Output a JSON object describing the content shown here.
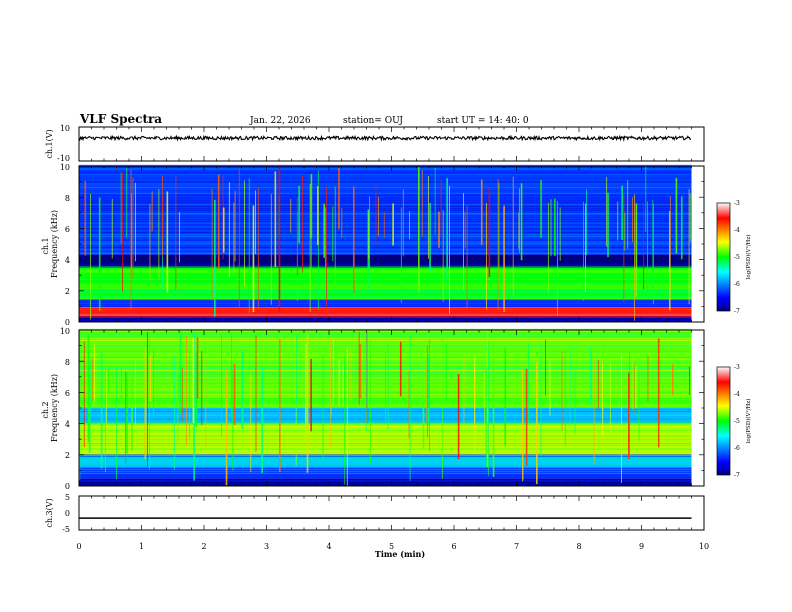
{
  "header": {
    "title": "VLF Spectra",
    "date": "Jan. 22, 2026",
    "station": "station= OUJ",
    "start": "start  UT =   14: 40: 0"
  },
  "chart_data": [
    {
      "type": "line",
      "name": "ch1-waveform",
      "ylabel": "ch.1(V)",
      "ylim": [
        -10,
        10
      ],
      "y_tick_labels": [
        "10",
        "-10"
      ],
      "x_range_min": [
        0,
        10
      ],
      "baseline_level_V": 3.5,
      "noise_amplitude_V": 1.0
    },
    {
      "type": "heatmap",
      "name": "ch1-spectrogram",
      "ylabel_line1": "ch.1",
      "ylabel_line2": "Frequency (kHz)",
      "ylim_kHz": [
        0,
        10
      ],
      "y_tick_labels": [
        "0",
        "2",
        "4",
        "6",
        "8",
        "10"
      ],
      "colorbar": {
        "label": "log(PSD)(V²/Hz)",
        "range": [
          -7,
          -3
        ],
        "tick_labels": [
          "-3",
          "-4",
          "-5",
          "-6",
          "-7"
        ]
      },
      "bands": [
        {
          "from_kHz": 0.0,
          "to_kHz": 0.3,
          "level": -6.8
        },
        {
          "from_kHz": 0.3,
          "to_kHz": 0.9,
          "level": -3.6
        },
        {
          "from_kHz": 0.9,
          "to_kHz": 1.4,
          "level": -6.4
        },
        {
          "from_kHz": 1.4,
          "to_kHz": 3.5,
          "level": -5.0
        },
        {
          "from_kHz": 3.5,
          "to_kHz": 4.3,
          "level": -7.0
        },
        {
          "from_kHz": 4.3,
          "to_kHz": 10.0,
          "level": -6.3
        }
      ],
      "event_density": "high"
    },
    {
      "type": "heatmap",
      "name": "ch2-spectrogram",
      "ylabel_line1": "ch.2",
      "ylabel_line2": "Frequency (kHz)",
      "ylim_kHz": [
        0,
        10
      ],
      "y_tick_labels": [
        "0",
        "2",
        "4",
        "6",
        "8",
        "10"
      ],
      "colorbar": {
        "label": "log(PSD)(V²/Hz)",
        "range": [
          -7,
          -3
        ],
        "tick_labels": [
          "-3",
          "-4",
          "-5",
          "-6",
          "-7"
        ]
      },
      "bands": [
        {
          "from_kHz": 0.0,
          "to_kHz": 0.5,
          "level": -6.8
        },
        {
          "from_kHz": 0.5,
          "to_kHz": 1.2,
          "level": -6.3
        },
        {
          "from_kHz": 1.2,
          "to_kHz": 2.0,
          "level": -5.8
        },
        {
          "from_kHz": 2.0,
          "to_kHz": 4.0,
          "level": -4.6
        },
        {
          "from_kHz": 4.0,
          "to_kHz": 5.0,
          "level": -5.8
        },
        {
          "from_kHz": 5.0,
          "to_kHz": 10.0,
          "level": -4.8
        }
      ],
      "event_density": "high"
    },
    {
      "type": "line",
      "name": "ch3-waveform",
      "ylabel": "ch.3(V)",
      "ylim": [
        -5,
        5
      ],
      "y_tick_labels": [
        "5",
        "0",
        "-5"
      ],
      "constant_level_V": -1.5
    }
  ],
  "x_axis": {
    "label": "Time (min)",
    "ticks": [
      "0",
      "1",
      "2",
      "3",
      "4",
      "5",
      "6",
      "7",
      "8",
      "9",
      "10"
    ],
    "range_min": [
      0,
      10
    ],
    "data_end_min": 9.8
  }
}
